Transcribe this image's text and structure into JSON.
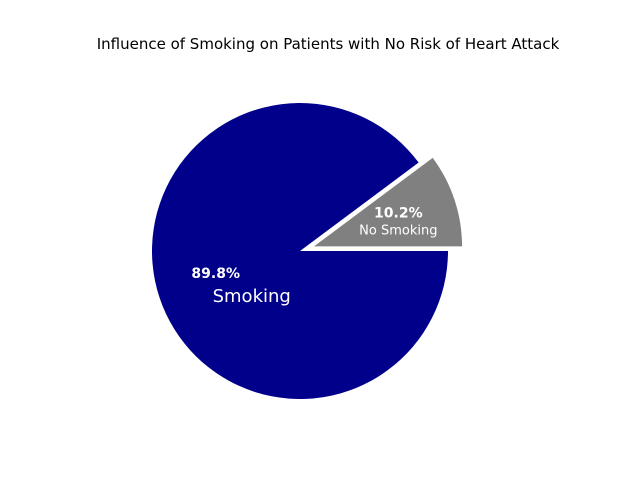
{
  "chart_data": {
    "type": "pie",
    "title": "Influence of Smoking on Patients with No Risk of Heart Attack",
    "categories": [
      "No Smoking",
      "Smoking"
    ],
    "values": [
      10.2,
      89.8
    ],
    "percent_labels": [
      "10.2%",
      "89.8%"
    ],
    "colors": [
      "#808080",
      "#00008b"
    ],
    "explode": [
      0.1,
      0
    ],
    "start_angle": 0,
    "counterclock": true,
    "legend": "none"
  }
}
